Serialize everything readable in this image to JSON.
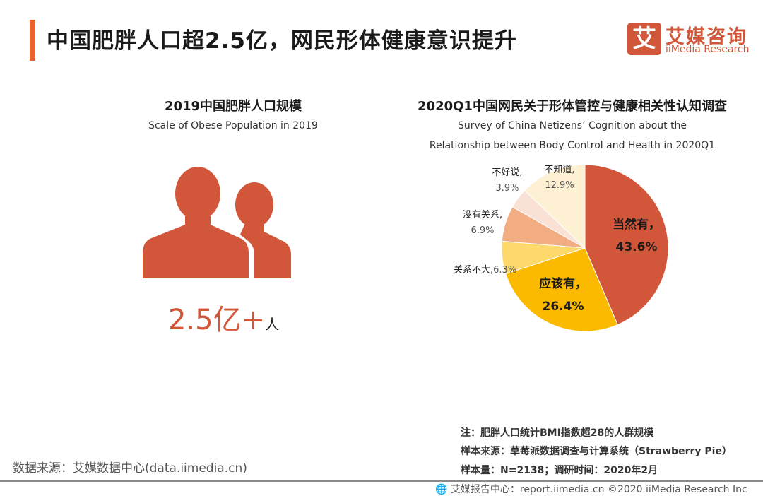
{
  "header": {
    "title": "中国肥胖人口超2.5亿，网民形体健康意识提升",
    "accent": "#E8632E"
  },
  "logo": {
    "mark": "艾",
    "cn": "艾媒咨询",
    "en": "iiMedia Research"
  },
  "left": {
    "title": "2019中国肥胖人口规模",
    "subtitle": "Scale of Obese Population in 2019",
    "icon": "people-icon",
    "value": "2.5亿+",
    "unit": "人"
  },
  "chart_data": {
    "type": "pie",
    "title": "2020Q1中国网民关于形体管控与健康相关性认知调查",
    "subtitle_line1": "Survey of China Netizens’  Cognition about the",
    "subtitle_line2": "Relationship between Body Control and Health in 2020Q1",
    "direction": "clockwise from top",
    "slices": [
      {
        "label": "当然有，",
        "pct": "43.6%",
        "value": 43.6,
        "color": "#D2573A"
      },
      {
        "label": "应该有，",
        "pct": "26.4%",
        "value": 26.4,
        "color": "#FBBA00"
      },
      {
        "label": "关系不大,",
        "pct": "6.3%",
        "value": 6.3,
        "color": "#FDD86A"
      },
      {
        "label": "没有关系,",
        "pct": "6.9%",
        "value": 6.9,
        "color": "#F2AE82"
      },
      {
        "label": "不好说,",
        "pct": "3.9%",
        "value": 3.9,
        "color": "#F9E1D6"
      },
      {
        "label": "不知道,",
        "pct": "12.9%",
        "value": 12.9,
        "color": "#FEF0D3"
      }
    ]
  },
  "notes": [
    "注：肥胖人口统计BMI指数超28的人群规模",
    "样本来源：草莓派数据调查与计算系统（Strawberry  Pie）",
    "样本量：N=2138；调研时间：2020年2月"
  ],
  "source": "数据来源：艾媒数据中心(data.iimedia.cn)",
  "footer": {
    "icon": "globe-icon",
    "text": "艾媒报告中心：report.iimedia.cn  ©2020  iiMedia Research Inc"
  }
}
